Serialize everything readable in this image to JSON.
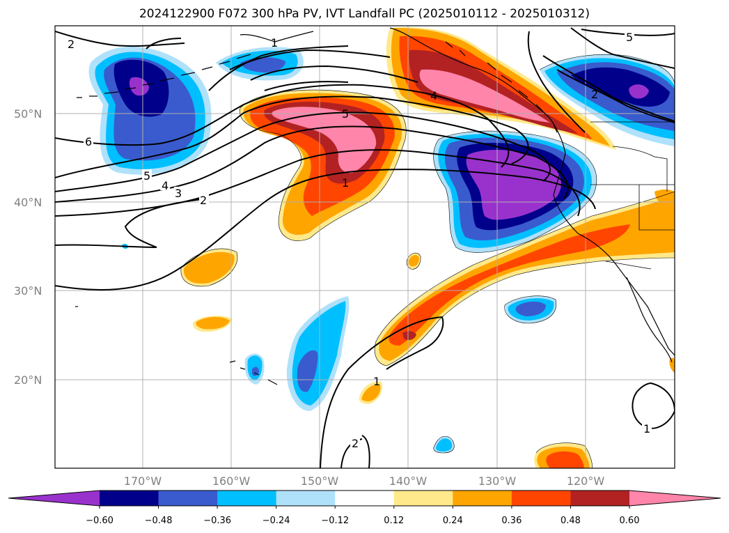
{
  "title": "2024122900 F072 300 hPa PV, IVT Landfall PC (2025010112 - 2025010312)",
  "lat_labels": [
    "50°N",
    "40°N",
    "30°N",
    "20°N"
  ],
  "lon_labels": [
    "170°W",
    "160°W",
    "150°W",
    "140°W",
    "130°W",
    "120°W"
  ],
  "contour_labels": [
    "2",
    "1",
    "6",
    "5",
    "4",
    "3",
    "2",
    "5",
    "4",
    "1",
    "5",
    "2",
    "1",
    "2",
    "1"
  ],
  "colorbar": {
    "ticks": [
      "−0.60",
      "−0.48",
      "−0.36",
      "−0.24",
      "−0.12",
      "0.12",
      "0.24",
      "0.36",
      "0.48",
      "0.60"
    ],
    "colors": [
      "#9932cc",
      "#00008b",
      "#3a5bcd",
      "#00bfff",
      "#afe1fa",
      "#ffffff",
      "#ffe98a",
      "#ffa500",
      "#ff4500",
      "#b22222",
      "#ff85aa"
    ]
  },
  "colors": {
    "purple": "#9932cc",
    "navy": "#00008b",
    "royal": "#3a5bcd",
    "sky": "#00bfff",
    "lightsky": "#afe1fa",
    "yellow": "#ffe98a",
    "orange": "#ffa500",
    "redorange": "#ff4500",
    "firebrick": "#b22222",
    "pink": "#ff85aa"
  }
}
